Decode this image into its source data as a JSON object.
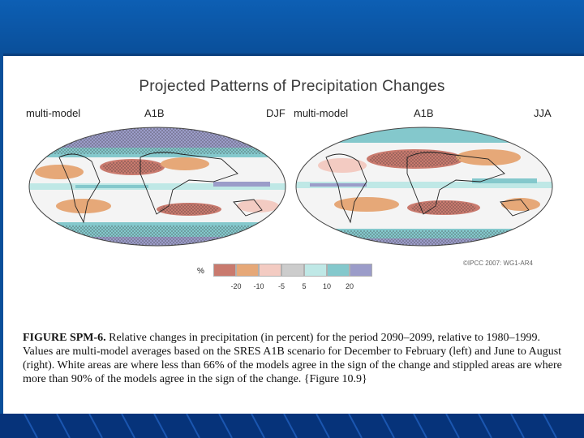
{
  "slide": {
    "title": "Projected Patterns of Precipitation Changes",
    "band_color": "#0d5fb4",
    "bottom_color": "#06337a"
  },
  "maps": [
    {
      "left_label": "multi-model",
      "scenario": "A1B",
      "season": "DJF"
    },
    {
      "left_label": "multi-model",
      "scenario": "A1B",
      "season": "JJA"
    }
  ],
  "legend": {
    "unit": "%",
    "colors": [
      "#c97a6e",
      "#e6a878",
      "#f3cbc2",
      "#cccccc",
      "#bfe8e6",
      "#84c8cc",
      "#9b9cc9"
    ],
    "ticks": [
      "-20",
      "-10",
      "-5",
      "5",
      "10",
      "20"
    ]
  },
  "credit": "©IPCC 2007: WG1-AR4",
  "caption": {
    "label": "FIGURE SPM-6.",
    "text": "Relative changes in precipitation (in percent) for the period 2090–2099, relative to 1980–1999. Values are multi-model averages based on the SRES A1B scenario for December to February (left) and June to August (right). White areas are where less than 66% of the models agree in the sign of the change and stippled areas are where more than 90% of the models agree in the sign of the change. {Figure 10.9}"
  }
}
